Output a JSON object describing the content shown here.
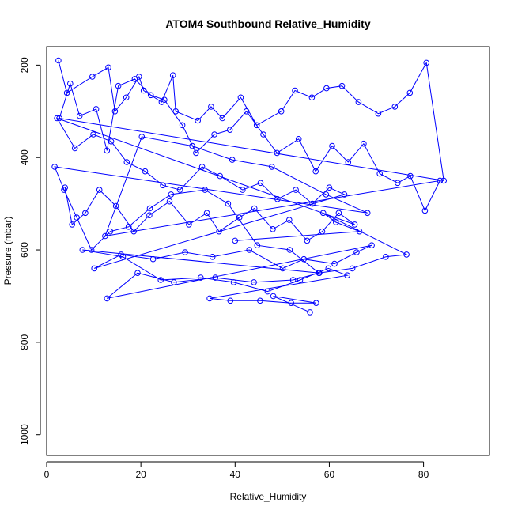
{
  "chart_data": {
    "type": "scatter",
    "title": "ATOM4 Southbound Relative_Humidity",
    "xlabel": "Relative_Humidity",
    "ylabel": "Pressure (mbar)",
    "xlim": [
      0,
      94
    ],
    "ylim": [
      1045,
      160
    ],
    "y_reversed": true,
    "x_ticks": [
      0,
      20,
      40,
      60,
      80
    ],
    "y_ticks": [
      200,
      400,
      600,
      800,
      1000
    ],
    "grid": false,
    "legend": "none",
    "colors": {
      "series": "#0000ff",
      "axis": "#000000",
      "background": "#ffffff"
    },
    "series": [
      {
        "marker": "open-circle",
        "connected": true,
        "x": [
          2.5,
          4.3,
          9.7,
          13.1,
          14.5,
          16.9,
          19.6,
          20.6,
          24.4,
          26.8,
          27.4,
          32.1,
          34.9,
          37.3,
          41.2,
          44.6,
          49.8,
          52.7,
          56.3,
          59.4,
          62.7,
          66.2,
          70.4,
          73.9,
          77.1,
          80.6,
          84.3,
          2.7,
          5.0,
          7.0,
          10.5,
          12.8,
          15.2,
          18.7,
          22.1,
          25.0,
          28.8,
          31.7,
          35.6,
          38.9,
          42.4,
          46.0,
          48.9,
          53.5,
          57.1,
          60.6,
          64.0,
          67.3,
          70.7,
          74.5,
          77.2,
          80.3,
          83.5,
          12.4,
          20.2,
          30.9,
          39.4,
          47.8,
          59.3,
          68.1,
          1.7,
          3.7,
          6.4,
          9.5,
          13.5,
          17.4,
          21.9,
          26.4,
          33.6,
          38.5,
          44.7,
          51.6,
          57.8,
          64.9,
          72.0,
          76.4,
          58.7,
          61.4,
          66.4,
          40.0
        ],
        "y": [
          190,
          260,
          225,
          205,
          300,
          270,
          225,
          255,
          280,
          222,
          300,
          320,
          290,
          315,
          270,
          330,
          300,
          255,
          270,
          250,
          245,
          280,
          305,
          290,
          260,
          195,
          450,
          315,
          240,
          310,
          295,
          385,
          245,
          230,
          265,
          275,
          330,
          390,
          350,
          340,
          300,
          350,
          390,
          360,
          430,
          375,
          410,
          370,
          435,
          455,
          440,
          515,
          450,
          570,
          355,
          375,
          405,
          420,
          480,
          520,
          420,
          470,
          530,
          600,
          560,
          550,
          510,
          480,
          470,
          500,
          590,
          600,
          650,
          640,
          615,
          610,
          520,
          540,
          560,
          580
        ]
      },
      {
        "marker": "open-circle",
        "connected": true,
        "x": [
          3.9,
          5.4,
          8.2,
          11.2,
          14.7,
          18.5,
          21.8,
          26.1,
          30.2,
          34.0,
          36.6,
          40.9,
          44.1,
          48.0,
          51.5,
          55.3,
          58.5,
          62.0,
          65.4,
          2.2,
          6.0,
          9.9,
          13.7,
          17.0,
          20.9,
          24.7,
          28.3,
          33.0,
          36.8,
          41.6,
          45.4,
          49.0,
          52.9,
          56.4,
          60.0,
          63.2,
          10.1,
          15.8,
          22.6,
          29.4,
          35.2,
          43.0,
          50.1,
          54.6,
          61.1,
          65.8,
          69.0,
          12.8,
          19.3,
          27.0,
          35.8,
          44.0,
          52.3,
          57.9,
          7.6,
          16.2,
          24.2,
          32.7,
          39.7,
          46.9,
          53.8,
          59.8,
          63.8,
          34.6,
          39.0,
          45.3,
          51.9,
          57.2,
          48.1,
          55.9
        ],
        "y": [
          465,
          545,
          520,
          470,
          505,
          560,
          525,
          495,
          545,
          520,
          560,
          530,
          510,
          555,
          535,
          580,
          560,
          520,
          545,
          315,
          380,
          350,
          365,
          410,
          430,
          460,
          470,
          420,
          440,
          470,
          455,
          490,
          470,
          500,
          465,
          480,
          640,
          610,
          620,
          605,
          615,
          600,
          640,
          620,
          630,
          605,
          590,
          705,
          650,
          670,
          660,
          670,
          665,
          650,
          600,
          615,
          665,
          660,
          670,
          690,
          665,
          640,
          655,
          705,
          710,
          710,
          715,
          715,
          700,
          735
        ]
      }
    ]
  }
}
